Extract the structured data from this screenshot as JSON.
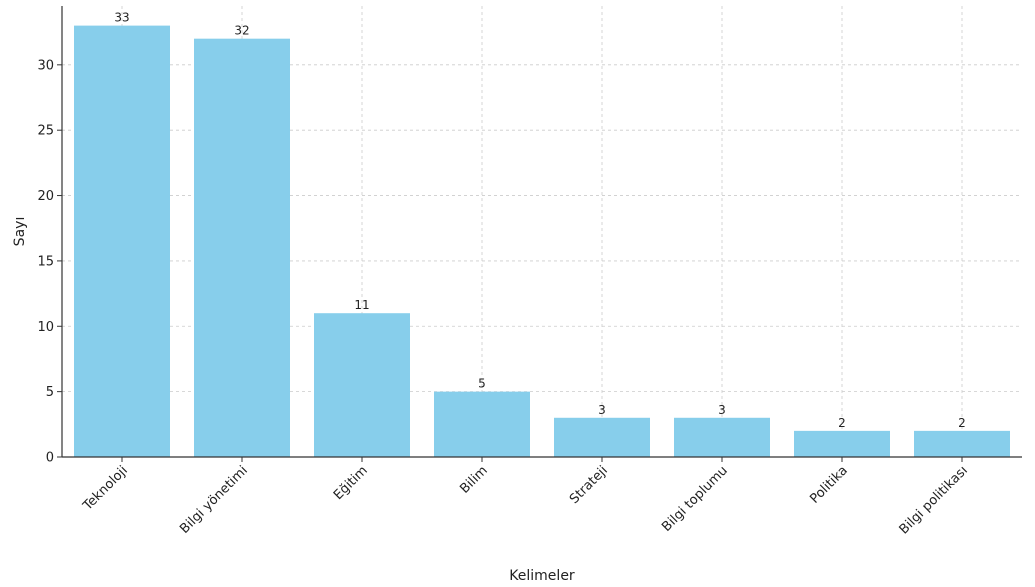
{
  "chart_data": {
    "type": "bar",
    "title": "",
    "xlabel": "Kelimeler",
    "ylabel": "Sayı",
    "categories": [
      "Teknoloji",
      "Bilgi yönetimi",
      "Eğitim",
      "Bilim",
      "Strateji",
      "Bilgi toplumu",
      "Politika",
      "Bilgi politikası"
    ],
    "values": [
      33,
      32,
      11,
      5,
      3,
      3,
      2,
      2
    ],
    "ylim": [
      0,
      34.5
    ],
    "yticks": [
      0,
      5,
      10,
      15,
      20,
      25,
      30
    ],
    "grid": true,
    "bar_color": "#87ceeb",
    "tick_label_rotation": -45
  }
}
